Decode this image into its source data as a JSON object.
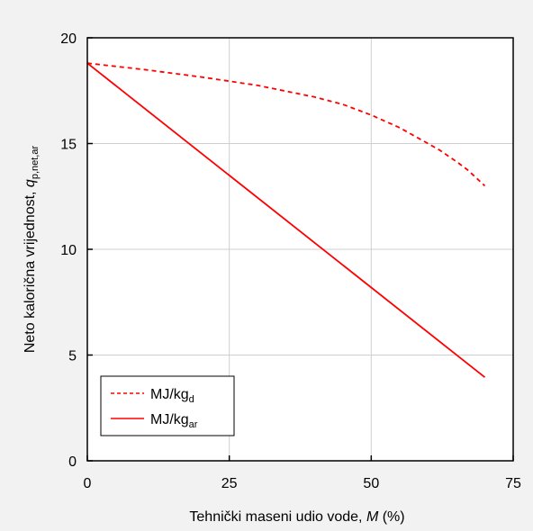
{
  "chart_data": {
    "type": "line",
    "title": "",
    "xlabel": {
      "main": "Tehnički maseni udio vode, ",
      "symbol": "M",
      "unit": " (%)"
    },
    "ylabel": {
      "main": "Neto kalorična vrijednost, ",
      "symbol": "q",
      "subscript": "p,net,ar"
    },
    "xlim": [
      0,
      75
    ],
    "ylim": [
      0,
      20
    ],
    "xticks": [
      0,
      25,
      50,
      75
    ],
    "yticks": [
      0,
      5,
      10,
      15,
      20
    ],
    "grid": true,
    "legend_position": "bottom-left",
    "colors": {
      "series": "#ff0000",
      "grid": "#cfcfcf",
      "background": "#f2f2f2",
      "plot_area": "#ffffff"
    },
    "series": [
      {
        "name": "MJ/kg",
        "name_subscript": "d",
        "dash": "dashed",
        "x": [
          0,
          10,
          20,
          30,
          40,
          45,
          50,
          55,
          60,
          62,
          65,
          67,
          68,
          70
        ],
        "y": [
          18.8,
          18.5,
          18.15,
          17.75,
          17.2,
          16.85,
          16.35,
          15.75,
          15.0,
          14.7,
          14.15,
          13.75,
          13.5,
          13.0
        ]
      },
      {
        "name": "MJ/kg",
        "name_subscript": "ar",
        "dash": "solid",
        "x": [
          0,
          70
        ],
        "y": [
          18.8,
          3.95
        ]
      }
    ]
  }
}
